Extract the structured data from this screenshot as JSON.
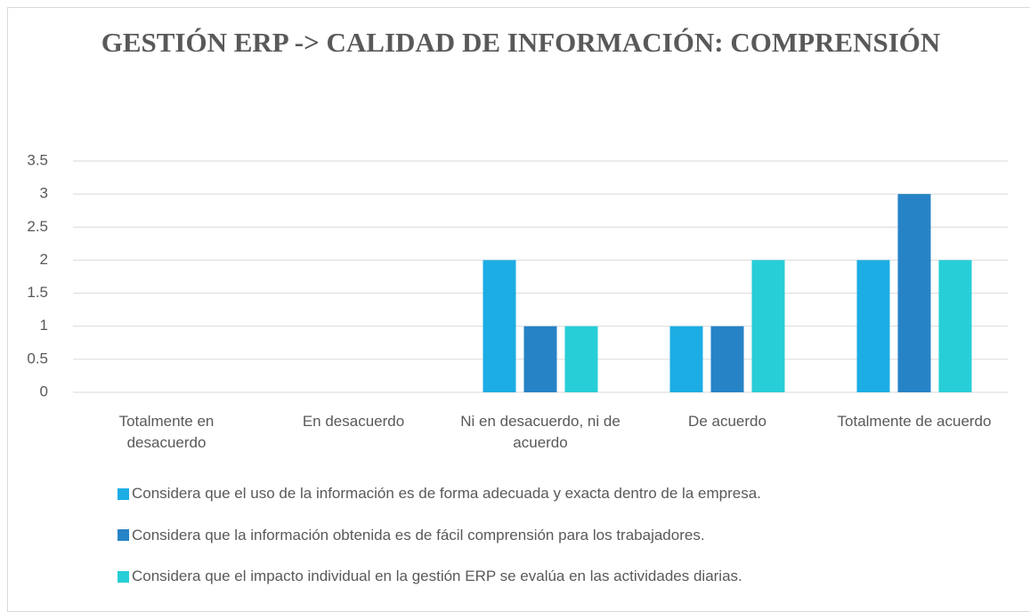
{
  "chart_data": {
    "type": "bar",
    "title": "GESTIÓN ERP -> CALIDAD DE INFORMACIÓN: COMPRENSIÓN",
    "categories": [
      "Totalmente en desacuerdo",
      "En desacuerdo",
      "Ni en desacuerdo, ni de acuerdo",
      "De acuerdo",
      "Totalmente de acuerdo"
    ],
    "series": [
      {
        "name": "Considera que el uso de la información es de forma adecuada y exacta dentro de la empresa.",
        "color": "#1cade4",
        "values": [
          0,
          0,
          2,
          1,
          2
        ]
      },
      {
        "name": "Considera que la información obtenida es de fácil comprensión para los trabajadores.",
        "color": "#2683c6",
        "values": [
          0,
          0,
          1,
          1,
          3
        ]
      },
      {
        "name": "Considera que el impacto individual en la gestión ERP se evalúa en las actividades diarias.",
        "color": "#27ced7",
        "values": [
          0,
          0,
          1,
          2,
          2
        ]
      }
    ],
    "ylim": [
      0,
      3.5
    ],
    "yticks": [
      0,
      0.5,
      1,
      1.5,
      2,
      2.5,
      3,
      3.5
    ],
    "grid": true,
    "legend": "bottom"
  }
}
